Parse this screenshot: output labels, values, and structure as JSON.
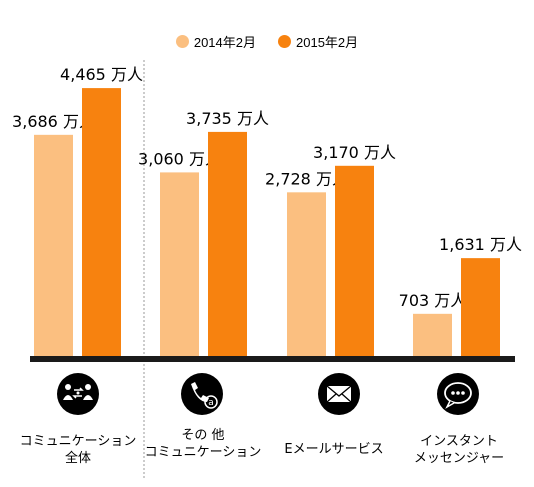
{
  "chart_data": {
    "type": "bar",
    "categories": [
      {
        "line1": "コミュニケーション",
        "line2": "全体",
        "icon": "people-exchange-icon"
      },
      {
        "line1": "その 他",
        "line2": "コミュニケーション",
        "icon": "phone-at-icon"
      },
      {
        "line1": "Eメールサービス",
        "line2": "",
        "icon": "envelope-icon"
      },
      {
        "line1": "インスタント",
        "line2": "メッセンジャー",
        "icon": "chat-bubble-icon"
      }
    ],
    "series": [
      {
        "name": "2014年2月",
        "color": "#fbbf80",
        "values": [
          3686,
          3060,
          2728,
          703
        ],
        "labels": [
          "3,686 万人",
          "3,060 万人",
          "2,728 万人",
          "703 万人"
        ]
      },
      {
        "name": "2015年2月",
        "color": "#f7820f",
        "values": [
          4465,
          3735,
          3170,
          1631
        ],
        "labels": [
          "4,465 万人",
          "3,735 万人",
          "3,170 万人",
          "1,631 万人"
        ]
      }
    ],
    "ylim": [
      0,
      4900
    ],
    "legend_position": "top-center",
    "grid": false
  }
}
